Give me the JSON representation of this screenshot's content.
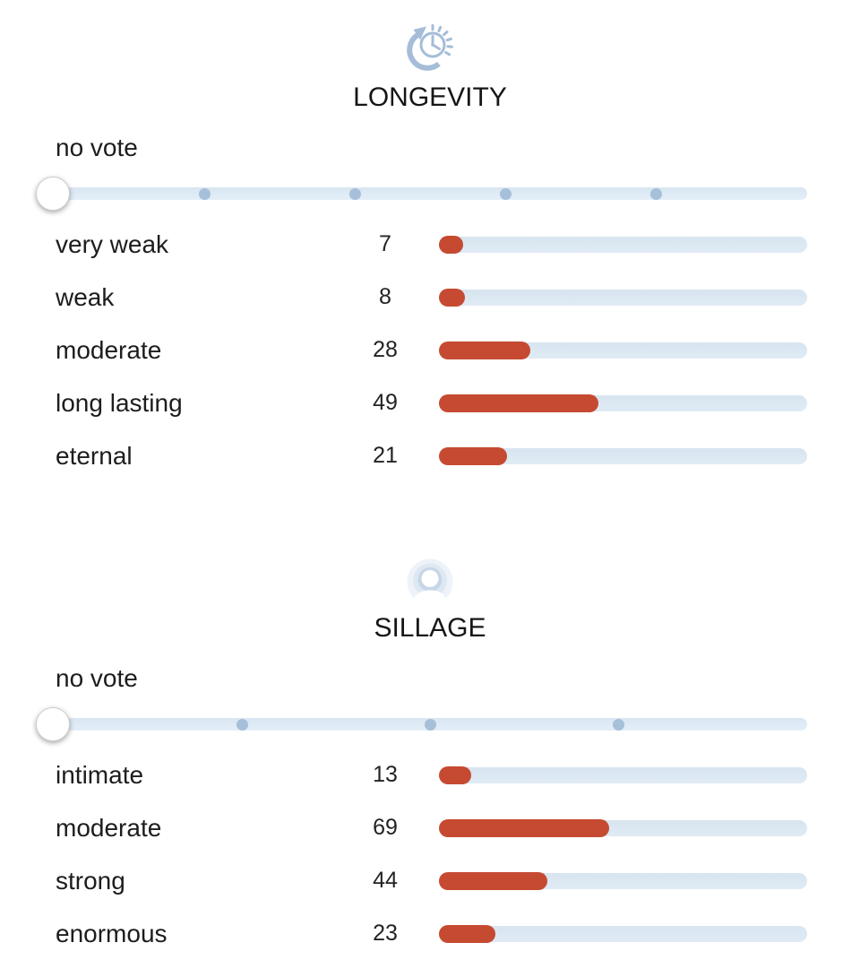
{
  "ui_colors": {
    "background": "#ffffff",
    "bar_fill_red": "#c64a32",
    "bar_track_blue": "#dbe7f1",
    "slider_track_blue": "#deeaf4",
    "slider_dot_blue": "#a6c0d9",
    "icon_blue": "#a5bdd8",
    "text_dark": "#1d1d1d"
  },
  "sections": [
    {
      "title": "LONGEVITY",
      "icon": "clock-history-icon",
      "no_vote_label": "no vote",
      "slider": {
        "selected": "no vote",
        "dot_positions_percent": [
          20,
          40,
          60,
          80
        ]
      },
      "rows": [
        {
          "label": "very weak",
          "votes": 7
        },
        {
          "label": "weak",
          "votes": 8
        },
        {
          "label": "moderate",
          "votes": 28
        },
        {
          "label": "long lasting",
          "votes": 49
        },
        {
          "label": "eternal",
          "votes": 21
        }
      ]
    },
    {
      "title": "SILLAGE",
      "icon": "person-aura-icon",
      "no_vote_label": "no vote",
      "slider": {
        "selected": "no vote",
        "dot_positions_percent": [
          25,
          50,
          75
        ]
      },
      "rows": [
        {
          "label": "intimate",
          "votes": 13
        },
        {
          "label": "moderate",
          "votes": 69
        },
        {
          "label": "strong",
          "votes": 44
        },
        {
          "label": "enormous",
          "votes": 23
        }
      ]
    }
  ],
  "chart_data": [
    {
      "type": "bar",
      "orientation": "horizontal",
      "title": "LONGEVITY",
      "categories": [
        "very weak",
        "weak",
        "moderate",
        "long lasting",
        "eternal"
      ],
      "values": [
        7,
        8,
        28,
        49,
        21
      ],
      "total_votes": 113,
      "bar_scale": "value / total votes of section",
      "grid": false,
      "legend": false
    },
    {
      "type": "bar",
      "orientation": "horizontal",
      "title": "SILLAGE",
      "categories": [
        "intimate",
        "moderate",
        "strong",
        "enormous"
      ],
      "values": [
        13,
        69,
        44,
        23
      ],
      "total_votes": 149,
      "bar_scale": "value / total votes of section",
      "grid": false,
      "legend": false
    }
  ]
}
